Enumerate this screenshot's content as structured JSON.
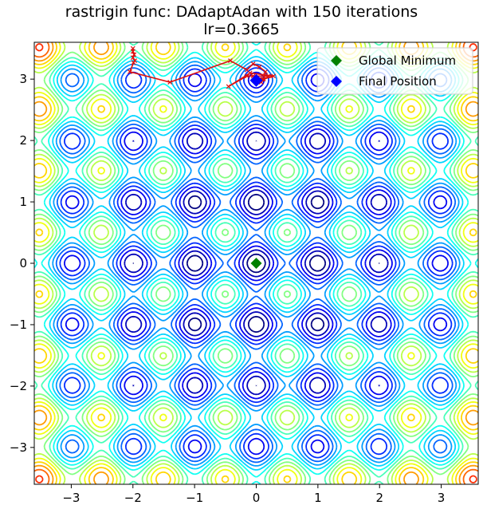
{
  "chart_data": {
    "type": "contour",
    "title": "rastrigin func: DAdaptAdan with 150 iterations",
    "subtitle": "lr=0.3665",
    "xlabel": "",
    "ylabel": "",
    "xlim": [
      -3.6,
      3.6
    ],
    "ylim": [
      -3.6,
      3.6
    ],
    "xticks": [
      -3,
      -2,
      -1,
      0,
      1,
      2,
      3
    ],
    "yticks": [
      -3,
      -2,
      -1,
      0,
      1,
      2,
      3
    ],
    "xtick_labels": [
      "−3",
      "−2",
      "−1",
      "0",
      "1",
      "2",
      "3"
    ],
    "ytick_labels": [
      "−3",
      "−2",
      "−1",
      "0",
      "1",
      "2",
      "3"
    ],
    "grid": false,
    "function": "rastrigin",
    "colormap": "jet",
    "contour_levels": [
      4,
      8,
      12,
      16,
      20,
      24,
      28,
      32,
      36,
      40,
      44,
      48,
      52,
      56,
      60,
      64,
      68,
      72,
      76
    ],
    "legend_position": "top-right",
    "legend": [
      {
        "label": "Global Minimum",
        "marker": "diamond",
        "color": "#008000"
      },
      {
        "label": "Final Position",
        "marker": "diamond",
        "color": "#0000ff"
      }
    ],
    "global_minimum": {
      "x": 0,
      "y": 0
    },
    "final_position": {
      "x": 0.0,
      "y": 2.98
    },
    "trajectory_color": "#dd1111",
    "trajectory": [
      [
        -2.0,
        3.5
      ],
      [
        -2.0,
        3.45
      ],
      [
        -1.98,
        3.4
      ],
      [
        -2.0,
        3.35
      ],
      [
        -1.97,
        3.3
      ],
      [
        -1.99,
        3.27
      ],
      [
        -2.05,
        3.12
      ],
      [
        -1.4,
        2.95
      ],
      [
        -0.42,
        3.3
      ],
      [
        -0.15,
        3.15
      ],
      [
        -0.05,
        3.25
      ],
      [
        0.05,
        3.2
      ],
      [
        0.15,
        3.12
      ],
      [
        0.12,
        3.0
      ],
      [
        0.28,
        3.05
      ],
      [
        -0.1,
        3.1
      ],
      [
        -0.45,
        2.88
      ],
      [
        -0.15,
        3.05
      ],
      [
        0.2,
        3.05
      ],
      [
        0.08,
        2.95
      ],
      [
        -0.05,
        3.05
      ],
      [
        0.1,
        3.0
      ],
      [
        0.0,
        2.98
      ],
      [
        0.02,
        3.02
      ],
      [
        0.0,
        2.98
      ]
    ]
  }
}
